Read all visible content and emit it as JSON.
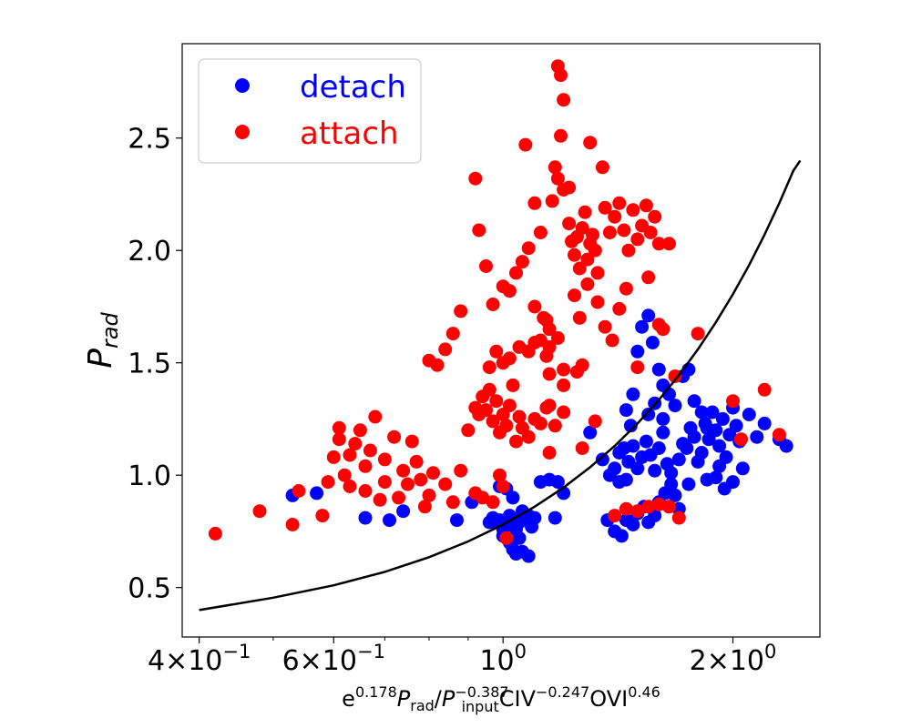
{
  "chart_data": {
    "type": "scatter",
    "title": "",
    "xscale": "log",
    "xlim": [
      0.38,
      2.6
    ],
    "ylim": [
      0.28,
      2.92
    ],
    "xlabel": {
      "base": "e",
      "sup1": "0.178",
      "p": "P",
      "sub1": "rad",
      "slash": "/",
      "sub2": "input",
      "sup2": "−0.387",
      "civ": "CIV",
      "sup3": "−0.247",
      "ovi": "OVI",
      "sup4": "0.46"
    },
    "ylabel": {
      "p": "P",
      "sub": "rad"
    },
    "xticks": [
      {
        "value": 0.4,
        "mantissa": "4",
        "times": "×",
        "base": "10",
        "exp": "−1"
      },
      {
        "value": 0.6,
        "mantissa": "6",
        "times": "×",
        "base": "10",
        "exp": "−1"
      },
      {
        "value": 1.0,
        "mantissa": "",
        "times": "",
        "base": "10",
        "exp": "0"
      },
      {
        "value": 2.0,
        "mantissa": "2",
        "times": "×",
        "base": "10",
        "exp": "0"
      }
    ],
    "yticks": [
      {
        "value": 0.5,
        "label": "0.5"
      },
      {
        "value": 1.0,
        "label": "1.0"
      },
      {
        "value": 1.5,
        "label": "1.5"
      },
      {
        "value": 2.0,
        "label": "2.0"
      },
      {
        "value": 2.5,
        "label": "2.5"
      }
    ],
    "legend": {
      "location": "upper left"
    },
    "series": [
      {
        "name": "detach",
        "color": "#0000ff",
        "points": [
          [
            0.53,
            0.91
          ],
          [
            0.57,
            0.92
          ],
          [
            0.66,
            0.81
          ],
          [
            0.71,
            0.8
          ],
          [
            0.74,
            0.84
          ],
          [
            0.87,
            0.8
          ],
          [
            0.91,
            0.88
          ],
          [
            0.96,
            0.79
          ],
          [
            0.97,
            0.81
          ],
          [
            0.98,
            0.79
          ],
          [
            0.99,
            0.8
          ],
          [
            1.0,
            0.76
          ],
          [
            1.01,
            0.78
          ],
          [
            1.02,
            0.82
          ],
          [
            1.03,
            0.8
          ],
          [
            1.04,
            0.76
          ],
          [
            1.05,
            0.79
          ],
          [
            1.06,
            0.84
          ],
          [
            1.07,
            0.81
          ],
          [
            1.08,
            0.82
          ],
          [
            1.09,
            0.77
          ],
          [
            1.1,
            0.81
          ],
          [
            1.02,
            0.7
          ],
          [
            1.03,
            0.67
          ],
          [
            1.04,
            0.65
          ],
          [
            1.06,
            0.66
          ],
          [
            1.08,
            0.64
          ],
          [
            1.0,
            0.73
          ],
          [
            1.05,
            0.72
          ],
          [
            0.99,
            0.95
          ],
          [
            1.01,
            0.94
          ],
          [
            1.03,
            0.9
          ],
          [
            1.12,
            0.97
          ],
          [
            1.15,
            0.98
          ],
          [
            1.18,
            0.97
          ],
          [
            1.2,
            0.92
          ],
          [
            1.17,
            0.81
          ],
          [
            1.3,
            1.19
          ],
          [
            1.35,
            1.07
          ],
          [
            1.37,
            0.8
          ],
          [
            1.4,
            0.75
          ],
          [
            1.43,
            0.73
          ],
          [
            1.45,
            0.8
          ],
          [
            1.48,
            0.78
          ],
          [
            1.5,
            0.83
          ],
          [
            1.53,
            0.86
          ],
          [
            1.55,
            0.79
          ],
          [
            1.58,
            0.82
          ],
          [
            1.6,
            0.88
          ],
          [
            1.63,
            0.92
          ],
          [
            1.66,
            0.96
          ],
          [
            1.68,
            0.91
          ],
          [
            1.4,
            1.03
          ],
          [
            1.42,
            1.1
          ],
          [
            1.44,
            1.12
          ],
          [
            1.46,
            1.06
          ],
          [
            1.48,
            1.13
          ],
          [
            1.5,
            1.03
          ],
          [
            1.52,
            1.08
          ],
          [
            1.54,
            1.15
          ],
          [
            1.56,
            1.09
          ],
          [
            1.58,
            1.02
          ],
          [
            1.6,
            1.12
          ],
          [
            1.62,
            1.19
          ],
          [
            1.64,
            1.05
          ],
          [
            1.66,
            1.01
          ],
          [
            1.7,
            1.07
          ],
          [
            1.72,
            1.14
          ],
          [
            1.74,
            1.12
          ],
          [
            1.76,
            1.21
          ],
          [
            1.78,
            1.17
          ],
          [
            1.8,
            1.06
          ],
          [
            1.82,
            1.1
          ],
          [
            1.84,
            1.23
          ],
          [
            1.86,
            1.16
          ],
          [
            1.88,
            1.28
          ],
          [
            1.9,
            1.2
          ],
          [
            1.92,
            1.13
          ],
          [
            1.94,
            1.25
          ],
          [
            1.96,
            1.08
          ],
          [
            1.98,
            1.18
          ],
          [
            2.0,
            1.3
          ],
          [
            2.02,
            1.22
          ],
          [
            2.04,
            1.15
          ],
          [
            2.06,
            1.03
          ],
          [
            2.1,
            1.27
          ],
          [
            2.15,
            1.17
          ],
          [
            2.2,
            1.23
          ],
          [
            2.3,
            1.16
          ],
          [
            2.35,
            1.13
          ],
          [
            1.5,
            1.55
          ],
          [
            1.52,
            1.66
          ],
          [
            1.55,
            1.71
          ],
          [
            1.57,
            1.59
          ],
          [
            1.6,
            1.47
          ],
          [
            1.62,
            1.4
          ],
          [
            1.65,
            1.36
          ],
          [
            1.68,
            1.31
          ],
          [
            1.72,
            1.44
          ],
          [
            1.75,
            1.47
          ],
          [
            1.48,
            1.36
          ],
          [
            1.45,
            1.29
          ],
          [
            1.47,
            1.22
          ],
          [
            1.55,
            1.27
          ],
          [
            1.58,
            1.32
          ],
          [
            1.62,
            1.25
          ],
          [
            1.78,
            1.33
          ],
          [
            1.82,
            1.28
          ],
          [
            1.85,
            1.21
          ],
          [
            1.9,
            0.99
          ],
          [
            1.95,
            0.94
          ],
          [
            2.0,
            0.97
          ],
          [
            1.92,
            1.04
          ],
          [
            1.85,
            0.98
          ],
          [
            1.75,
            0.96
          ],
          [
            1.7,
            0.85
          ],
          [
            1.65,
            0.86
          ],
          [
            1.45,
            0.98
          ],
          [
            1.42,
            0.97
          ],
          [
            1.38,
            1.0
          ]
        ]
      },
      {
        "name": "attach",
        "color": "#ff0000",
        "points": [
          [
            0.42,
            0.74
          ],
          [
            0.48,
            0.84
          ],
          [
            0.53,
            0.78
          ],
          [
            0.54,
            0.93
          ],
          [
            0.58,
            0.82
          ],
          [
            0.59,
            0.97
          ],
          [
            0.6,
            1.08
          ],
          [
            0.61,
            1.21
          ],
          [
            0.61,
            1.16
          ],
          [
            0.62,
            1.0
          ],
          [
            0.63,
            0.95
          ],
          [
            0.63,
            1.09
          ],
          [
            0.64,
            1.14
          ],
          [
            0.65,
            1.2
          ],
          [
            0.66,
            0.93
          ],
          [
            0.66,
            1.04
          ],
          [
            0.67,
            1.11
          ],
          [
            0.68,
            1.26
          ],
          [
            0.69,
            0.89
          ],
          [
            0.7,
            0.97
          ],
          [
            0.7,
            1.07
          ],
          [
            0.72,
            1.17
          ],
          [
            0.73,
            0.9
          ],
          [
            0.74,
            1.02
          ],
          [
            0.75,
            0.96
          ],
          [
            0.76,
            1.15
          ],
          [
            0.77,
            1.06
          ],
          [
            0.78,
            0.98
          ],
          [
            0.79,
            0.86
          ],
          [
            0.8,
            0.91
          ],
          [
            0.81,
            1.01
          ],
          [
            0.84,
            0.96
          ],
          [
            0.86,
            0.88
          ],
          [
            0.88,
            1.02
          ],
          [
            0.92,
            0.92
          ],
          [
            0.94,
            0.9
          ],
          [
            0.97,
            0.88
          ],
          [
            0.99,
            1.0
          ],
          [
            1.0,
            0.95
          ],
          [
            1.01,
            0.72
          ],
          [
            0.8,
            1.51
          ],
          [
            0.82,
            1.49
          ],
          [
            0.84,
            1.56
          ],
          [
            0.86,
            1.63
          ],
          [
            0.88,
            1.73
          ],
          [
            0.9,
            1.2
          ],
          [
            0.92,
            1.3
          ],
          [
            0.93,
            1.27
          ],
          [
            0.94,
            1.35
          ],
          [
            0.95,
            1.29
          ],
          [
            0.96,
            1.38
          ],
          [
            0.97,
            1.24
          ],
          [
            0.98,
            1.33
          ],
          [
            0.99,
            1.19
          ],
          [
            1.0,
            1.27
          ],
          [
            1.01,
            1.22
          ],
          [
            1.02,
            1.31
          ],
          [
            1.03,
            1.4
          ],
          [
            1.04,
            1.15
          ],
          [
            1.05,
            1.26
          ],
          [
            1.06,
            1.21
          ],
          [
            1.08,
            1.17
          ],
          [
            1.1,
            1.25
          ],
          [
            1.14,
            1.3
          ],
          [
            0.96,
            1.48
          ],
          [
            0.98,
            1.55
          ],
          [
            1.0,
            1.5
          ],
          [
            1.02,
            1.52
          ],
          [
            1.05,
            1.57
          ],
          [
            1.08,
            1.55
          ],
          [
            1.1,
            1.59
          ],
          [
            1.12,
            1.6
          ],
          [
            1.14,
            1.53
          ],
          [
            1.15,
            1.45
          ],
          [
            1.18,
            1.61
          ],
          [
            1.2,
            1.47
          ],
          [
            0.92,
            2.32
          ],
          [
            0.95,
            1.93
          ],
          [
            0.97,
            1.76
          ],
          [
            1.0,
            1.84
          ],
          [
            1.02,
            1.82
          ],
          [
            1.04,
            1.9
          ],
          [
            1.06,
            1.95
          ],
          [
            1.08,
            2.01
          ],
          [
            1.1,
            1.75
          ],
          [
            1.12,
            2.08
          ],
          [
            1.14,
            1.69
          ],
          [
            1.15,
            1.65
          ],
          [
            1.16,
            2.22
          ],
          [
            1.17,
            2.37
          ],
          [
            1.18,
            2.32
          ],
          [
            1.19,
            2.51
          ],
          [
            1.2,
            2.27
          ],
          [
            1.22,
            2.12
          ],
          [
            1.23,
            2.04
          ],
          [
            1.24,
            1.98
          ],
          [
            1.25,
            2.06
          ],
          [
            1.26,
            1.92
          ],
          [
            1.27,
            2.1
          ],
          [
            1.28,
            2.17
          ],
          [
            1.29,
            1.96
          ],
          [
            1.3,
            2.03
          ],
          [
            1.31,
            2.07
          ],
          [
            1.32,
            2.0
          ],
          [
            1.33,
            1.9
          ],
          [
            1.35,
            2.37
          ],
          [
            1.36,
            2.19
          ],
          [
            1.38,
            2.08
          ],
          [
            1.4,
            2.15
          ],
          [
            1.42,
            2.21
          ],
          [
            1.44,
            2.09
          ],
          [
            1.46,
            2.0
          ],
          [
            1.48,
            2.18
          ],
          [
            1.5,
            2.05
          ],
          [
            1.52,
            2.11
          ],
          [
            1.54,
            2.2
          ],
          [
            1.56,
            2.08
          ],
          [
            1.58,
            2.15
          ],
          [
            1.6,
            2.03
          ],
          [
            1.18,
            2.82
          ],
          [
            1.19,
            2.78
          ],
          [
            1.2,
            2.67
          ],
          [
            1.07,
            2.47
          ],
          [
            1.3,
            2.48
          ],
          [
            1.1,
            2.21
          ],
          [
            1.22,
            2.28
          ],
          [
            1.24,
            1.8
          ],
          [
            1.26,
            1.7
          ],
          [
            1.29,
            1.85
          ],
          [
            1.33,
            1.77
          ],
          [
            1.36,
            1.66
          ],
          [
            1.39,
            1.6
          ],
          [
            1.42,
            1.74
          ],
          [
            1.45,
            1.83
          ],
          [
            1.55,
            1.88
          ],
          [
            1.6,
            1.67
          ],
          [
            1.62,
            1.65
          ],
          [
            1.65,
            2.03
          ],
          [
            0.93,
            2.09
          ],
          [
            1.13,
            1.7
          ],
          [
            1.15,
            1.57
          ],
          [
            1.2,
            1.4
          ],
          [
            1.25,
            1.46
          ],
          [
            1.27,
            1.49
          ],
          [
            1.32,
            1.24
          ],
          [
            1.27,
            1.12
          ],
          [
            1.2,
            1.28
          ],
          [
            1.17,
            1.22
          ],
          [
            1.15,
            1.31
          ],
          [
            1.15,
            1.1
          ],
          [
            1.12,
            1.23
          ],
          [
            1.4,
            0.82
          ],
          [
            1.45,
            0.85
          ],
          [
            1.5,
            0.84
          ],
          [
            1.55,
            0.86
          ],
          [
            1.6,
            0.87
          ],
          [
            1.65,
            0.86
          ],
          [
            1.7,
            0.81
          ],
          [
            1.68,
            1.44
          ],
          [
            1.8,
            1.63
          ],
          [
            2.0,
            1.33
          ],
          [
            2.05,
            1.16
          ],
          [
            2.2,
            1.38
          ],
          [
            2.3,
            1.18
          ],
          [
            1.5,
            1.48
          ]
        ]
      }
    ],
    "fit_line": {
      "color": "#000000",
      "x": [
        0.4,
        0.5,
        0.6,
        0.7,
        0.8,
        0.9,
        1.0,
        1.1,
        1.2,
        1.3,
        1.4,
        1.5,
        1.6,
        1.7,
        1.8,
        1.9,
        2.0,
        2.1,
        2.2,
        2.3,
        2.4,
        2.45
      ],
      "y": [
        0.4,
        0.455,
        0.51,
        0.57,
        0.635,
        0.705,
        0.78,
        0.86,
        0.945,
        1.035,
        1.13,
        1.23,
        1.335,
        1.445,
        1.56,
        1.68,
        1.805,
        1.935,
        2.07,
        2.21,
        2.355,
        2.4
      ]
    }
  }
}
